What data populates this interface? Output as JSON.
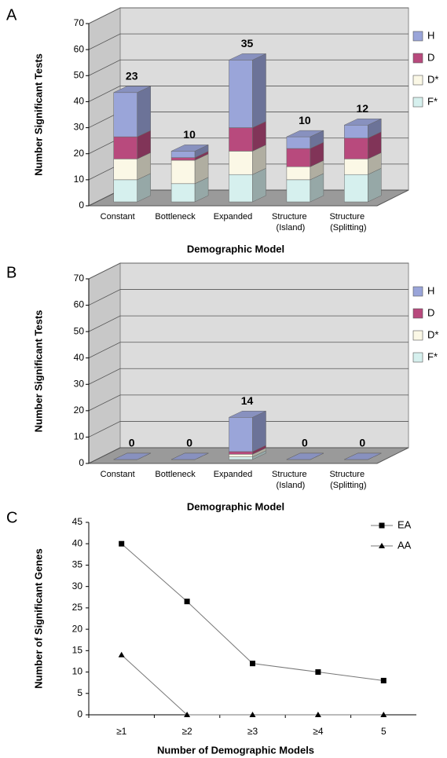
{
  "chart_data": [
    {
      "type": "bar3d",
      "panel": "A",
      "x_label": "Demographic Model",
      "y_label": "Number Significant Tests",
      "categories": [
        "Constant",
        "Bottleneck",
        "Expanded",
        "Structure (Island)",
        "Structure (Splitting)"
      ],
      "series": [
        {
          "name": "F*",
          "color": "#d6f0ee",
          "values": [
            8.5,
            7,
            10.5,
            8.5,
            10.5
          ]
        },
        {
          "name": "D*",
          "color": "#fbf8e6",
          "values": [
            8,
            9,
            9,
            5,
            6
          ]
        },
        {
          "name": "D",
          "color": "#b84a7d",
          "values": [
            8.5,
            1,
            9,
            7,
            8
          ]
        },
        {
          "name": "H",
          "color": "#9aa5d9",
          "values": [
            17,
            2.5,
            26,
            4.5,
            5
          ]
        }
      ],
      "bar_labels": [
        23,
        10,
        35,
        10,
        12
      ],
      "ylim": [
        0,
        70
      ],
      "yticks": [
        0,
        10,
        20,
        30,
        40,
        50,
        60,
        70
      ],
      "grid": true
    },
    {
      "type": "bar3d",
      "panel": "B",
      "x_label": "Demographic Model",
      "y_label": "Number Significant Tests",
      "categories": [
        "Constant",
        "Bottleneck",
        "Expanded",
        "Structure (Island)",
        "Structure (Splitting)"
      ],
      "series": [
        {
          "name": "F*",
          "color": "#d6f0ee",
          "values": [
            0,
            0,
            1,
            0,
            0
          ]
        },
        {
          "name": "D*",
          "color": "#fbf8e6",
          "values": [
            0,
            0,
            1,
            0,
            0
          ]
        },
        {
          "name": "D",
          "color": "#b84a7d",
          "values": [
            0,
            0,
            1,
            0,
            0
          ]
        },
        {
          "name": "H",
          "color": "#9aa5d9",
          "values": [
            0,
            0,
            13,
            0,
            0
          ]
        }
      ],
      "bar_labels": [
        0,
        0,
        14,
        0,
        0
      ],
      "ylim": [
        0,
        70
      ],
      "yticks": [
        0,
        10,
        20,
        30,
        40,
        50,
        60,
        70
      ],
      "grid": true
    },
    {
      "type": "line",
      "panel": "C",
      "x_label": "Number of Demographic Models",
      "y_label": "Number of Significant Genes",
      "categories": [
        "≥1",
        "≥2",
        "≥3",
        "≥4",
        "5"
      ],
      "series": [
        {
          "name": "EA",
          "color": "#000000",
          "marker": "square",
          "values": [
            40,
            26.5,
            12,
            10,
            8
          ]
        },
        {
          "name": "AA",
          "color": "#000000",
          "marker": "triangle",
          "values": [
            14,
            0,
            0,
            0,
            0
          ]
        }
      ],
      "ylim": [
        0,
        45
      ],
      "yticks": [
        0,
        5,
        10,
        15,
        20,
        25,
        30,
        35,
        40,
        45
      ]
    }
  ]
}
